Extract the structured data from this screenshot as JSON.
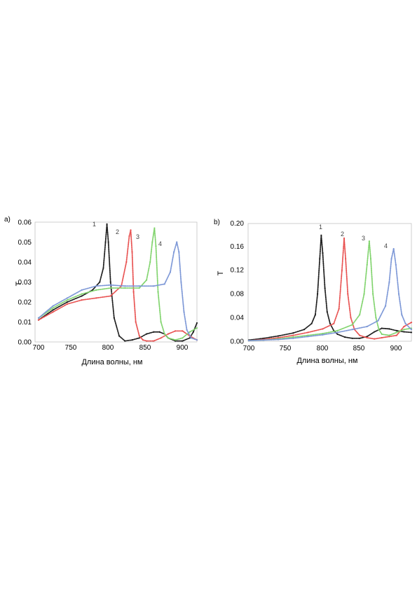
{
  "chart_data": [
    {
      "type": "line",
      "panel_label": "a)",
      "xlabel": "Длина волны, нм",
      "ylabel": "T",
      "xlim": [
        700,
        920
      ],
      "ylim": [
        0,
        0.06
      ],
      "xticks": [
        "700",
        "750",
        "800",
        "850",
        "900"
      ],
      "yticks": [
        "0.00",
        "0.01",
        "0.02",
        "0.03",
        "0.04",
        "0.05",
        "0.06"
      ],
      "grid": false,
      "series": [
        {
          "name": "1",
          "color": "#1a1a1a",
          "x": [
            700,
            720,
            740,
            760,
            775,
            785,
            790,
            793,
            795,
            797,
            800,
            805,
            812,
            820,
            830,
            840,
            850,
            860,
            868,
            875,
            880,
            890,
            900,
            910,
            915,
            920
          ],
          "y": [
            0.011,
            0.016,
            0.02,
            0.023,
            0.026,
            0.03,
            0.037,
            0.05,
            0.059,
            0.05,
            0.03,
            0.012,
            0.003,
            0.0005,
            0.001,
            0.002,
            0.004,
            0.005,
            0.005,
            0.004,
            0.002,
            0.0005,
            0.0005,
            0.002,
            0.005,
            0.0095
          ]
        },
        {
          "name": "2",
          "color": "#e8504f",
          "x": [
            700,
            720,
            740,
            760,
            780,
            800,
            815,
            822,
            826,
            828,
            830,
            832,
            835,
            840,
            845,
            850,
            860,
            870,
            880,
            890,
            900,
            910,
            920
          ],
          "y": [
            0.011,
            0.015,
            0.019,
            0.021,
            0.022,
            0.023,
            0.028,
            0.04,
            0.053,
            0.056,
            0.045,
            0.025,
            0.01,
            0.003,
            0.001,
            0.0005,
            0.0005,
            0.002,
            0.004,
            0.0055,
            0.0055,
            0.003,
            0.001
          ]
        },
        {
          "name": "3",
          "color": "#7fd36b",
          "x": [
            700,
            720,
            740,
            760,
            780,
            800,
            820,
            840,
            850,
            855,
            858,
            861,
            863,
            866,
            870,
            875,
            880,
            890,
            900,
            910,
            920
          ],
          "y": [
            0.012,
            0.017,
            0.021,
            0.024,
            0.026,
            0.027,
            0.027,
            0.027,
            0.031,
            0.04,
            0.05,
            0.057,
            0.048,
            0.025,
            0.01,
            0.004,
            0.002,
            0.001,
            0.002,
            0.005,
            0.007
          ]
        },
        {
          "name": "4",
          "color": "#7b96d6",
          "x": [
            700,
            720,
            740,
            760,
            780,
            800,
            820,
            840,
            860,
            875,
            883,
            888,
            892,
            895,
            898,
            902,
            906,
            912,
            920
          ],
          "y": [
            0.012,
            0.018,
            0.022,
            0.026,
            0.028,
            0.0285,
            0.028,
            0.028,
            0.028,
            0.029,
            0.035,
            0.045,
            0.05,
            0.045,
            0.03,
            0.015,
            0.006,
            0.002,
            0.001
          ]
        }
      ]
    },
    {
      "type": "line",
      "panel_label": "b)",
      "xlabel": "Длина волны, нм",
      "ylabel": "T",
      "xlim": [
        700,
        920
      ],
      "ylim": [
        0,
        0.2
      ],
      "xticks": [
        "700",
        "750",
        "800",
        "850",
        "900"
      ],
      "yticks": [
        "0.00",
        "0.04",
        "0.08",
        "0.12",
        "0.16",
        "0.20"
      ],
      "grid": false,
      "series": [
        {
          "name": "1",
          "color": "#1a1a1a",
          "x": [
            700,
            720,
            740,
            760,
            775,
            785,
            790,
            793,
            796,
            798,
            800,
            803,
            806,
            810,
            815,
            820,
            830,
            840,
            850,
            860,
            870,
            880,
            890,
            900,
            910,
            920
          ],
          "y": [
            0.002,
            0.005,
            0.009,
            0.014,
            0.02,
            0.03,
            0.045,
            0.08,
            0.14,
            0.18,
            0.15,
            0.09,
            0.05,
            0.03,
            0.018,
            0.012,
            0.007,
            0.005,
            0.005,
            0.008,
            0.016,
            0.022,
            0.021,
            0.018,
            0.016,
            0.015
          ]
        },
        {
          "name": "2",
          "color": "#e8504f",
          "x": [
            700,
            720,
            740,
            760,
            780,
            800,
            815,
            822,
            826,
            829,
            831,
            834,
            838,
            843,
            850,
            860,
            870,
            880,
            890,
            900,
            910,
            920
          ],
          "y": [
            0.001,
            0.003,
            0.006,
            0.01,
            0.015,
            0.021,
            0.03,
            0.055,
            0.12,
            0.175,
            0.14,
            0.08,
            0.04,
            0.02,
            0.01,
            0.006,
            0.004,
            0.006,
            0.008,
            0.01,
            0.025,
            0.032
          ]
        },
        {
          "name": "3",
          "color": "#7fd36b",
          "x": [
            700,
            720,
            740,
            760,
            780,
            800,
            820,
            840,
            850,
            856,
            860,
            863,
            865,
            868,
            872,
            876,
            880,
            890,
            900,
            910,
            920
          ],
          "y": [
            0.001,
            0.002,
            0.004,
            0.007,
            0.01,
            0.013,
            0.018,
            0.028,
            0.045,
            0.08,
            0.13,
            0.17,
            0.14,
            0.08,
            0.04,
            0.02,
            0.012,
            0.01,
            0.015,
            0.02,
            0.022
          ]
        },
        {
          "name": "4",
          "color": "#7b96d6",
          "x": [
            700,
            720,
            740,
            760,
            780,
            800,
            820,
            840,
            860,
            875,
            885,
            890,
            893,
            896,
            899,
            903,
            907,
            912,
            920
          ],
          "y": [
            0.001,
            0.002,
            0.003,
            0.005,
            0.008,
            0.011,
            0.015,
            0.02,
            0.025,
            0.035,
            0.06,
            0.1,
            0.14,
            0.157,
            0.13,
            0.08,
            0.045,
            0.03,
            0.02
          ]
        }
      ]
    }
  ]
}
